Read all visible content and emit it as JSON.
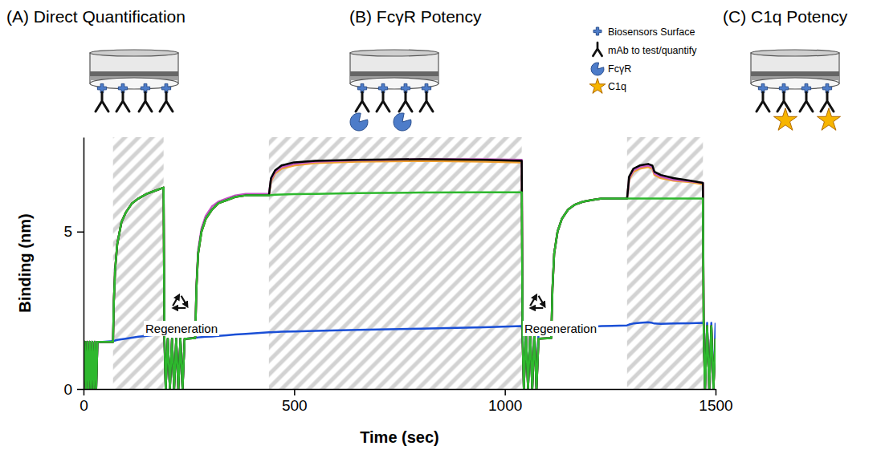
{
  "chart_data": {
    "type": "line",
    "panel_titles": [
      "(A) Direct Quantification",
      "(B) FcγR Potency",
      "(C) C1q Potency"
    ],
    "icon_labels": [
      "Biosensors Surface",
      "mAb to test/quantify",
      "FcγR",
      "C1q"
    ],
    "x_label": "Time (sec)",
    "y_label": "Binding (nm)",
    "annotations": [
      "Regeneration",
      "Regeneration"
    ],
    "xlim": [
      0,
      1500
    ],
    "ylim": [
      0,
      8
    ],
    "xticks": [
      0,
      500,
      1000,
      1500
    ],
    "yticks": [
      0,
      5
    ],
    "grid": false,
    "shaded_regions": [
      [
        70,
        190
      ],
      [
        440,
        1040
      ],
      [
        1290,
        1470
      ]
    ],
    "x": [
      0,
      3,
      6,
      9,
      12,
      15,
      18,
      21,
      24,
      27,
      30,
      33,
      36,
      45,
      70,
      72,
      75,
      80,
      90,
      100,
      115,
      130,
      150,
      170,
      190,
      192,
      195,
      200,
      205,
      210,
      215,
      220,
      225,
      230,
      235,
      240,
      245,
      265,
      268,
      272,
      280,
      290,
      305,
      320,
      340,
      360,
      385,
      440,
      445,
      455,
      470,
      500,
      550,
      650,
      800,
      950,
      1040,
      1042,
      1045,
      1050,
      1055,
      1060,
      1065,
      1070,
      1075,
      1080,
      1110,
      1113,
      1117,
      1125,
      1135,
      1150,
      1165,
      1185,
      1205,
      1230,
      1290,
      1295,
      1305,
      1320,
      1340,
      1350,
      1355,
      1370,
      1400,
      1440,
      1470,
      1472,
      1475,
      1480,
      1485,
      1490,
      1495,
      1500
    ],
    "series": [
      {
        "color": "#1a4fd6",
        "values": [
          0,
          1.5,
          0,
          1.5,
          0,
          1.5,
          0,
          1.5,
          0,
          1.5,
          0,
          1.5,
          1.5,
          1.5,
          1.52,
          1.53,
          1.54,
          1.56,
          1.58,
          1.6,
          1.63,
          1.66,
          1.69,
          1.72,
          1.75,
          1.6,
          0,
          1.6,
          0,
          1.6,
          0,
          1.6,
          0,
          1.6,
          0,
          1.6,
          1.6,
          1.63,
          1.63,
          1.64,
          1.65,
          1.66,
          1.67,
          1.69,
          1.71,
          1.73,
          1.75,
          1.8,
          1.8,
          1.81,
          1.82,
          1.83,
          1.85,
          1.88,
          1.92,
          1.96,
          2,
          1.8,
          0,
          1.85,
          0,
          1.85,
          0,
          1.85,
          0,
          1.85,
          1.9,
          1.9,
          1.9,
          1.91,
          1.92,
          1.93,
          1.95,
          1.97,
          1.98,
          2,
          2.02,
          2.05,
          2.08,
          2.1,
          2.12,
          2.1,
          2.08,
          2.07,
          2.08,
          2.09,
          2.1,
          2.1,
          0,
          2.1,
          0,
          2.1,
          0,
          2.1
        ]
      },
      {
        "color": "#f0a030",
        "values": [
          0,
          1.5,
          0,
          1.5,
          0,
          1.5,
          0,
          1.5,
          0,
          1.5,
          0,
          1.5,
          1.5,
          1.5,
          1.5,
          2.8,
          3.8,
          4.6,
          5.3,
          5.6,
          5.9,
          6.05,
          6.2,
          6.3,
          6.4,
          1.6,
          0,
          1.6,
          0,
          1.6,
          0,
          1.6,
          0,
          1.6,
          0,
          1.6,
          1.6,
          1.62,
          3.2,
          4.3,
          5,
          5.4,
          5.7,
          5.9,
          6,
          6.1,
          6.15,
          6.15,
          6.6,
          6.85,
          7,
          7.1,
          7.18,
          7.22,
          7.25,
          7.22,
          7.2,
          1.6,
          0,
          1.8,
          0,
          1.8,
          0,
          1.8,
          0,
          1.6,
          1.62,
          3.2,
          4.3,
          5,
          5.4,
          5.7,
          5.85,
          5.95,
          6,
          6.05,
          6.05,
          6.65,
          6.9,
          7,
          7.05,
          7,
          6.8,
          6.7,
          6.62,
          6.57,
          6.5,
          1.6,
          0,
          2,
          0,
          2,
          0,
          1.6
        ]
      },
      {
        "color": "#c455c4",
        "values": [
          0,
          1.5,
          0,
          1.5,
          0,
          1.5,
          0,
          1.5,
          0,
          1.5,
          0,
          1.5,
          1.5,
          1.5,
          1.5,
          2.8,
          3.8,
          4.6,
          5.3,
          5.6,
          5.9,
          6.05,
          6.2,
          6.3,
          6.4,
          1.6,
          0,
          1.6,
          0,
          1.6,
          0,
          1.6,
          0,
          1.6,
          0,
          1.6,
          1.6,
          1.62,
          3.3,
          4.4,
          5.1,
          5.5,
          5.8,
          5.95,
          6.05,
          6.15,
          6.2,
          6.2,
          6.65,
          6.9,
          7.05,
          7.15,
          7.22,
          7.27,
          7.3,
          7.3,
          7.28,
          1.6,
          0,
          1.8,
          0,
          1.8,
          0,
          1.8,
          0,
          1.6,
          1.62,
          3.2,
          4.3,
          5,
          5.4,
          5.7,
          5.85,
          5.95,
          6,
          6.05,
          6.05,
          6.7,
          6.95,
          7.05,
          7.1,
          7.05,
          6.85,
          6.75,
          6.65,
          6.6,
          6.55,
          1.6,
          0,
          2,
          0,
          2,
          0,
          1.6
        ]
      },
      {
        "color": "#000000",
        "values": [
          0,
          1.5,
          0,
          1.5,
          0,
          1.5,
          0,
          1.5,
          0,
          1.5,
          0,
          1.5,
          1.5,
          1.5,
          1.5,
          2.8,
          3.8,
          4.6,
          5.3,
          5.6,
          5.9,
          6.05,
          6.2,
          6.3,
          6.4,
          1.6,
          0,
          1.6,
          0,
          1.6,
          0,
          1.6,
          0,
          1.6,
          0,
          1.6,
          1.6,
          1.62,
          3.2,
          4.3,
          5,
          5.4,
          5.7,
          5.9,
          6,
          6.1,
          6.15,
          6.15,
          6.7,
          6.95,
          7.1,
          7.2,
          7.25,
          7.28,
          7.3,
          7.28,
          7.25,
          1.6,
          0,
          1.8,
          0,
          1.8,
          0,
          1.8,
          0,
          1.6,
          1.62,
          3.2,
          4.3,
          5,
          5.4,
          5.7,
          5.85,
          5.95,
          6,
          6.05,
          6.05,
          6.75,
          7,
          7.1,
          7.15,
          7.1,
          6.9,
          6.8,
          6.7,
          6.62,
          6.55,
          1.6,
          0,
          2,
          0,
          2,
          0,
          1.6
        ]
      },
      {
        "color": "#2eb82e",
        "values": [
          0,
          1.5,
          0,
          1.5,
          0,
          1.5,
          0,
          1.5,
          0,
          1.5,
          0,
          1.5,
          1.5,
          1.5,
          1.5,
          2.8,
          3.8,
          4.6,
          5.3,
          5.6,
          5.9,
          6.05,
          6.2,
          6.3,
          6.4,
          1.6,
          0,
          1.6,
          0,
          1.6,
          0,
          1.6,
          0,
          1.6,
          0,
          1.6,
          1.6,
          1.62,
          3.2,
          4.3,
          5,
          5.4,
          5.7,
          5.9,
          6,
          6.1,
          6.15,
          6.15,
          6.16,
          6.17,
          6.18,
          6.19,
          6.2,
          6.22,
          6.24,
          6.25,
          6.25,
          1.6,
          0,
          1.8,
          0,
          1.8,
          0,
          1.8,
          0,
          1.6,
          1.62,
          3.2,
          4.3,
          5,
          5.4,
          5.7,
          5.85,
          5.95,
          6,
          6.05,
          6.05,
          6.05,
          6.05,
          6.05,
          6.05,
          6.05,
          6.05,
          6.05,
          6.05,
          6.05,
          6.05,
          1.6,
          0,
          2,
          0,
          2,
          0,
          1.6
        ]
      }
    ]
  }
}
